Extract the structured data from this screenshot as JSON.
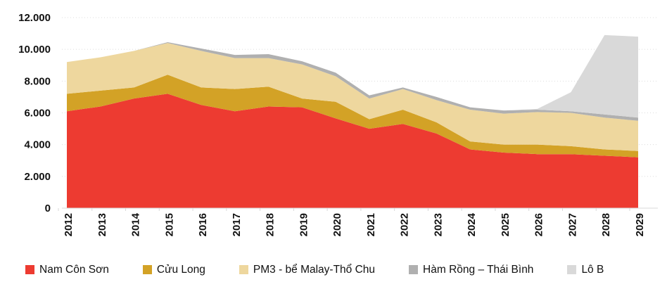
{
  "figure": {
    "background": "#ffffff",
    "text_color": "#111111",
    "gridline_color": "#dcdcdc",
    "axis_line_color": "#d9d9d9"
  },
  "chart_data": {
    "type": "area",
    "stacked": true,
    "grid": "dotted horizontal gridlines every 2000",
    "legend_position": "bottom",
    "x": [
      "2012",
      "2013",
      "2014",
      "2015",
      "2016",
      "2017",
      "2018",
      "2019",
      "2020",
      "2021",
      "2022",
      "2023",
      "2024",
      "2025",
      "2026",
      "2027",
      "2028",
      "2029"
    ],
    "ylim": [
      0,
      12000
    ],
    "ytick_values": [
      0,
      2000,
      4000,
      6000,
      8000,
      10000,
      12000
    ],
    "ytick_labels": [
      "0",
      "2.000",
      "4.000",
      "6.000",
      "8.000",
      "10.000",
      "12.000"
    ],
    "series": [
      {
        "name": "Nam Côn Sơn",
        "color": "#ED3B31",
        "values": [
          6100,
          6400,
          6900,
          7200,
          6500,
          6100,
          6400,
          6350,
          5650,
          5000,
          5300,
          4700,
          3700,
          3500,
          3400,
          3400,
          3300,
          3200
        ]
      },
      {
        "name": "Cửu Long",
        "color": "#D3A226",
        "values": [
          1100,
          1000,
          700,
          1200,
          1100,
          1400,
          1250,
          550,
          1050,
          600,
          900,
          700,
          500,
          500,
          600,
          500,
          400,
          400
        ]
      },
      {
        "name": "PM3 - bể Malay-Thổ Chu",
        "color": "#EED79E",
        "values": [
          2000,
          2100,
          2300,
          2000,
          2300,
          1950,
          1800,
          2150,
          1600,
          1300,
          1300,
          1400,
          2000,
          1950,
          2050,
          2100,
          2000,
          1900
        ]
      },
      {
        "name": "Hàm Rồng – Thái Bình",
        "color": "#B0B0B0",
        "values": [
          0,
          0,
          0,
          50,
          150,
          200,
          250,
          200,
          230,
          200,
          100,
          200,
          150,
          200,
          150,
          100,
          200,
          200
        ]
      },
      {
        "name": "Lô B",
        "color": "#D9D9D9",
        "values": [
          0,
          0,
          0,
          0,
          0,
          0,
          0,
          0,
          0,
          0,
          0,
          0,
          0,
          0,
          50,
          1200,
          5000,
          5100
        ]
      }
    ]
  },
  "legend": {
    "items": [
      {
        "label": "Nam Côn Sơn"
      },
      {
        "label": "Cửu Long"
      },
      {
        "label": "PM3 - bể Malay-Thổ Chu"
      },
      {
        "label": "Hàm Rồng – Thái Bình"
      },
      {
        "label": "Lô B"
      }
    ]
  }
}
